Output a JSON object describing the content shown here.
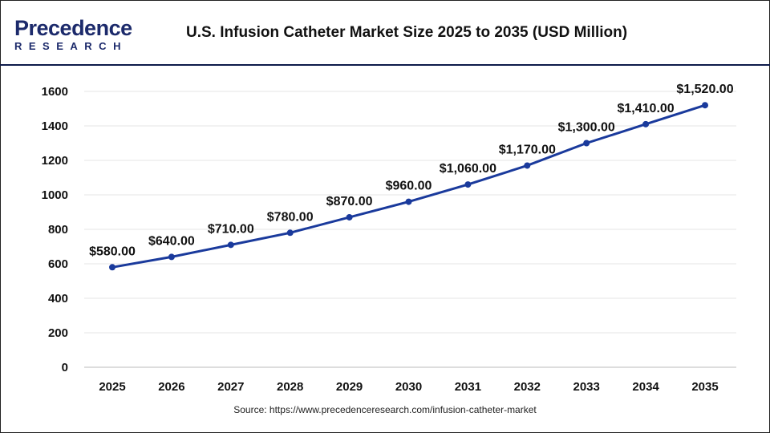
{
  "logo": {
    "line1": "Precedence",
    "line2": "RESEARCH"
  },
  "header": {
    "title": "U.S. Infusion Catheter Market Size 2025 to 2035 (USD Million)"
  },
  "source": "Source: https://www.precedenceresearch.com/infusion-catheter-market",
  "colors": {
    "line": "#1a3a9c",
    "grid": "#e6e6e6",
    "header_rule": "#0d1a4a"
  },
  "chart_data": {
    "type": "line",
    "title": "U.S. Infusion Catheter Market Size 2025 to 2035 (USD Million)",
    "xlabel": "",
    "ylabel": "",
    "categories": [
      "2025",
      "2026",
      "2027",
      "2028",
      "2029",
      "2030",
      "2031",
      "2032",
      "2033",
      "2034",
      "2035"
    ],
    "values": [
      580,
      640,
      710,
      780,
      870,
      960,
      1060,
      1170,
      1300,
      1410,
      1520
    ],
    "labels": [
      "$580.00",
      "$640.00",
      "$710.00",
      "$780.00",
      "$870.00",
      "$960.00",
      "$1,060.00",
      "$1,170.00",
      "$1,300.00",
      "$1,410.00",
      "$1,520.00"
    ],
    "ylim": [
      0,
      1600
    ],
    "yticks": [
      0,
      200,
      400,
      600,
      800,
      1000,
      1200,
      1400,
      1600
    ],
    "grid": true,
    "legend": "none"
  }
}
